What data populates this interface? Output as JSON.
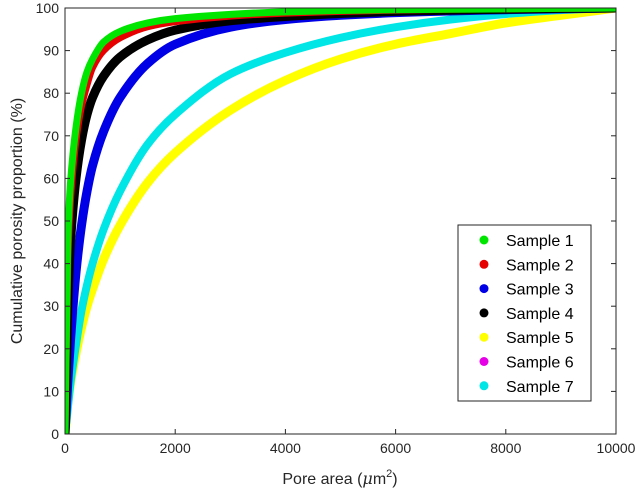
{
  "chart_data": {
    "type": "line",
    "xlabel": "Pore area (μm²)",
    "xlabel_parts": {
      "prefix": "Pore area (",
      "mu": "μ",
      "unit": "m",
      "sup": "2",
      "suffix": ")"
    },
    "ylabel": "Cumulative porosity proportion (%)",
    "xlim": [
      0,
      10000
    ],
    "ylim": [
      0,
      100
    ],
    "xticks": [
      0,
      2000,
      4000,
      6000,
      8000,
      10000
    ],
    "xtick_labels": [
      "0",
      "2000",
      "4000",
      "6000",
      "8000",
      "10000"
    ],
    "yticks": [
      0,
      10,
      20,
      30,
      40,
      50,
      60,
      70,
      80,
      90,
      100
    ],
    "ytick_labels": [
      "0",
      "10",
      "20",
      "30",
      "40",
      "50",
      "60",
      "70",
      "80",
      "90",
      "100"
    ],
    "grid": false,
    "legend_position": "bottom-right",
    "x": [
      0,
      50,
      100,
      200,
      300,
      400,
      500,
      700,
      1000,
      1500,
      2000,
      3000,
      4000,
      5000,
      6000,
      7000,
      8000,
      9000,
      10000
    ],
    "series": [
      {
        "name": "Sample 1",
        "color": "#00e600",
        "width": 7,
        "values": [
          0,
          45,
          59,
          72,
          80,
          85,
          88,
          92,
          94.5,
          96.5,
          97.5,
          98.5,
          99.1,
          99.4,
          99.6,
          99.7,
          99.8,
          99.9,
          100
        ]
      },
      {
        "name": "Sample 2",
        "color": "#e60000",
        "width": 7,
        "values": [
          0,
          40,
          55,
          69,
          77,
          82,
          86,
          90,
          93,
          95.6,
          96.8,
          98.1,
          98.8,
          99.2,
          99.5,
          99.7,
          99.8,
          99.9,
          100
        ]
      },
      {
        "name": "Sample 3",
        "color": "#0000e6",
        "width": 9,
        "values": [
          0,
          12,
          22,
          38,
          49,
          57,
          63,
          71,
          79,
          87,
          91.5,
          95.5,
          97.3,
          98.3,
          98.9,
          99.3,
          99.6,
          99.8,
          100
        ]
      },
      {
        "name": "Sample 4",
        "color": "#000000",
        "width": 9,
        "values": [
          0,
          30,
          45,
          60,
          69,
          75,
          79,
          84,
          88.5,
          92.5,
          94.8,
          97,
          98,
          98.7,
          99.2,
          99.5,
          99.7,
          99.9,
          100
        ]
      },
      {
        "name": "Sample 5",
        "color": "#ffff00",
        "width": 9,
        "values": [
          0,
          7,
          12,
          19,
          25,
          30,
          34,
          41,
          49,
          59,
          66,
          76,
          83,
          88,
          91.5,
          94,
          96.5,
          98.3,
          100
        ]
      },
      {
        "name": "Sample 6",
        "color": "#e600e6",
        "width": 3,
        "values": [
          0,
          6,
          12,
          21,
          29,
          35,
          40,
          48,
          57,
          68,
          75,
          84,
          89,
          92.5,
          95,
          96.8,
          98.2,
          99.3,
          100
        ]
      },
      {
        "name": "Sample 7",
        "color": "#00e6e6",
        "width": 8,
        "values": [
          0,
          6,
          12,
          21,
          29,
          35,
          40,
          48,
          57,
          68,
          75,
          84.5,
          89.5,
          93,
          95.5,
          97.3,
          98.6,
          99.5,
          100
        ]
      }
    ]
  }
}
